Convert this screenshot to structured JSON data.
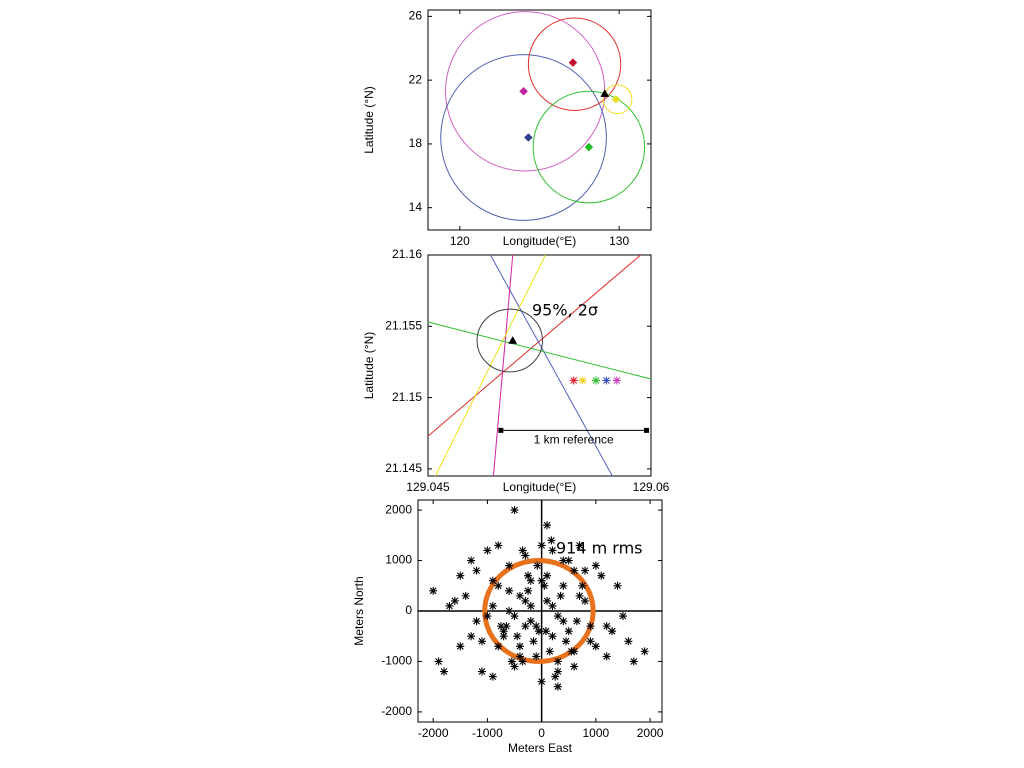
{
  "chart_data": [
    {
      "type": "scatter",
      "xlabel": "Longitude(°E)",
      "ylabel": "Latitude (°N)",
      "xlim": [
        118,
        132
      ],
      "ylim": [
        12.6,
        26.4
      ],
      "xticks": [
        120,
        130
      ],
      "yticks": [
        14,
        18,
        22,
        26
      ],
      "circles": [
        {
          "color": "#d060c0",
          "x": 124.1,
          "y": 21.3,
          "r": 5.0
        },
        {
          "color": "#5060b0",
          "x": 124.0,
          "y": 18.4,
          "r": 5.2
        },
        {
          "color": "#e03030",
          "x": 127.2,
          "y": 23.0,
          "r": 2.9
        },
        {
          "color": "#30c030",
          "x": 128.1,
          "y": 17.8,
          "r": 3.5
        },
        {
          "color": "#f0e020",
          "x": 129.9,
          "y": 20.8,
          "r": 0.9
        }
      ],
      "series": [
        {
          "color": "#c020a0",
          "marker": "diamond",
          "x": [
            124.0
          ],
          "y": [
            21.3
          ]
        },
        {
          "color": "#304090",
          "marker": "diamond",
          "x": [
            124.3
          ],
          "y": [
            18.4
          ]
        },
        {
          "color": "#c01030",
          "marker": "diamond",
          "x": [
            127.1
          ],
          "y": [
            23.1
          ]
        },
        {
          "color": "#20c020",
          "marker": "diamond",
          "x": [
            128.1
          ],
          "y": [
            17.8
          ]
        },
        {
          "color": "#e0e020",
          "marker": "diamond",
          "x": [
            129.8
          ],
          "y": [
            20.8
          ]
        },
        {
          "color": "#000000",
          "marker": "triangle",
          "x": [
            129.1
          ],
          "y": [
            21.15
          ]
        }
      ]
    },
    {
      "type": "scatter",
      "xlabel": "Longitude(°E)",
      "ylabel": "Latitude (°N)",
      "annotation": "95%, 2σ",
      "xlim": [
        129.045,
        129.06
      ],
      "ylim": [
        21.1445,
        21.16
      ],
      "xticks": [
        129.045,
        129.06
      ],
      "yticks": [
        21.145,
        21.15,
        21.155,
        21.16
      ],
      "lines": [
        {
          "color": "#e03030",
          "x": [
            129.045,
            129.0593
          ],
          "y": [
            21.1473,
            21.16
          ]
        },
        {
          "color": "#5060c0",
          "x": [
            129.0492,
            129.0574
          ],
          "y": [
            21.16,
            21.1445
          ]
        },
        {
          "color": "#d020a0",
          "x": [
            129.0507,
            129.0494
          ],
          "y": [
            21.16,
            21.1445
          ]
        },
        {
          "color": "#f0e020",
          "x": [
            129.0529,
            129.0455
          ],
          "y": [
            21.16,
            21.1445
          ]
        },
        {
          "color": "#30c030",
          "x": [
            129.045,
            129.06
          ],
          "y": [
            21.1553,
            21.1513
          ]
        }
      ],
      "circles": [
        {
          "color": "#404040",
          "x": 129.0505,
          "y": 21.154,
          "r": 0.0022
        }
      ],
      "series": [
        {
          "color": "#000000",
          "marker": "triangle",
          "x": [
            129.0507
          ],
          "y": [
            21.154
          ]
        },
        {
          "color": "#e02030",
          "marker": "star",
          "x": [
            129.0548
          ],
          "y": [
            21.1512
          ]
        },
        {
          "color": "#f0d020",
          "marker": "star",
          "x": [
            129.0554
          ],
          "y": [
            21.1512
          ]
        },
        {
          "color": "#30c030",
          "marker": "star",
          "x": [
            129.0563
          ],
          "y": [
            21.1512
          ]
        },
        {
          "color": "#4050c0",
          "marker": "star",
          "x": [
            129.057
          ],
          "y": [
            21.1512
          ]
        },
        {
          "color": "#d040c0",
          "marker": "star",
          "x": [
            129.0577
          ],
          "y": [
            21.1512
          ]
        }
      ],
      "reference": {
        "label": "1 km reference",
        "x": [
          129.0499,
          129.0597
        ],
        "y": 21.1477
      }
    },
    {
      "type": "scatter",
      "xlabel": "Meters East",
      "ylabel": "Meters North",
      "annotation": "914 m rms",
      "xlim": [
        -2280,
        2220
      ],
      "ylim": [
        -2200,
        2200
      ],
      "xticks": [
        -2000,
        -1000,
        0,
        1000,
        2000
      ],
      "yticks": [
        -2000,
        -1000,
        0,
        1000,
        2000
      ],
      "zero_lines": true,
      "circles": [
        {
          "color": "#e8711c",
          "x": -50,
          "y": 0,
          "r": 1000
        }
      ],
      "series": [
        {
          "color": "#000000",
          "marker": "star",
          "x": [
            -500,
            100,
            -1900,
            -2000,
            1700,
            300,
            -1000,
            -800,
            -1300,
            -1500,
            -1400,
            -900,
            -600,
            -300,
            0,
            200,
            500,
            800,
            1100,
            1400,
            -1200,
            -700,
            -400,
            -100,
            300,
            600,
            900,
            1200,
            -1700,
            1500,
            -600,
            -200,
            100,
            400,
            700,
            -900,
            -500,
            -300,
            200,
            500,
            -800,
            -400,
            0,
            300,
            600,
            -1100,
            -700,
            -200,
            100,
            900,
            -300,
            -600,
            -100,
            200,
            400,
            -400,
            -800,
            600,
            800,
            1000,
            -1000,
            -500,
            -150,
            150,
            450,
            -250,
            50,
            350,
            -650,
            700,
            -1600,
            -1300,
            -1100,
            1300,
            1600,
            -50,
            250,
            -350,
            550,
            -750,
            1000,
            -1500,
            -1200,
            1200,
            -900,
            400,
            -200,
            0,
            -450,
            650,
            -250,
            80,
            -80,
            300,
            -550,
            750,
            -350,
            180,
            -1800,
            1900
          ],
          "y": [
            2000,
            1700,
            -1000,
            400,
            -1000,
            -1500,
            1200,
            1300,
            1000,
            700,
            300,
            600,
            900,
            1100,
            1300,
            1200,
            1000,
            800,
            700,
            500,
            -200,
            -400,
            -700,
            -900,
            -1000,
            -800,
            -600,
            -300,
            100,
            -100,
            400,
            600,
            700,
            500,
            300,
            100,
            -100,
            -300,
            -500,
            -400,
            -700,
            -900,
            -1400,
            -1200,
            -1100,
            -600,
            -500,
            -200,
            200,
            -300,
            200,
            0,
            -300,
            100,
            -200,
            300,
            500,
            800,
            200,
            -700,
            -100,
            -1100,
            -600,
            -800,
            -600,
            700,
            500,
            300,
            -300,
            1300,
            200,
            -500,
            -1200,
            -400,
            -600,
            -400,
            -1300,
            -1000,
            -800,
            -300,
            900,
            -700,
            800,
            -900,
            -1300,
            1000,
            100,
            600,
            -500,
            -200,
            400,
            -400,
            900,
            -100,
            -1000,
            500,
            1200,
            1400,
            -1200,
            -800
          ]
        }
      ]
    }
  ]
}
